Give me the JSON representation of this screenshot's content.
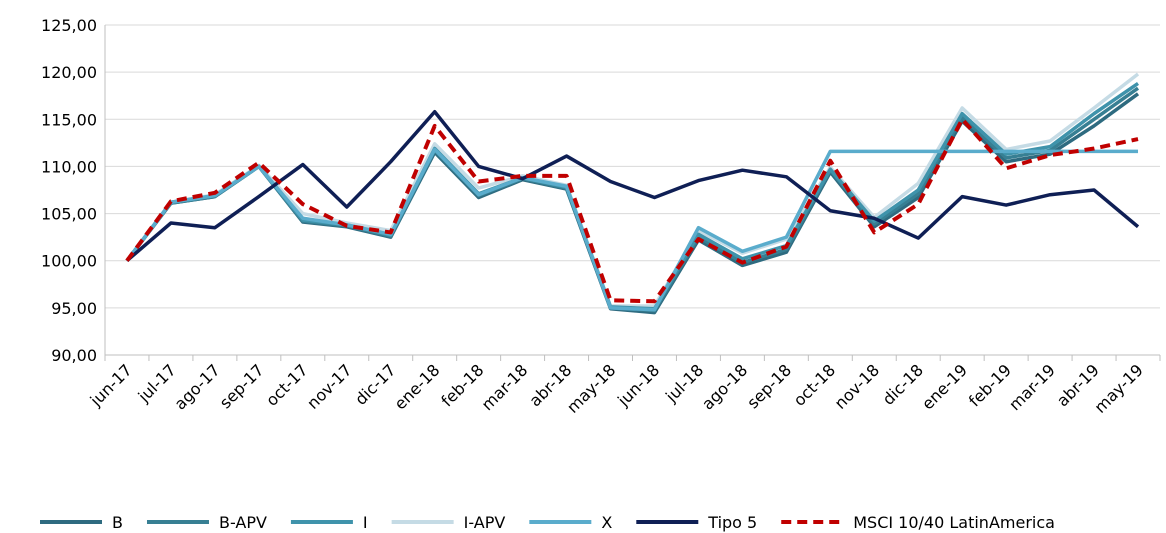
{
  "chart_data": {
    "type": "line",
    "categories": [
      "jun-17",
      "jul-17",
      "ago-17",
      "sep-17",
      "oct-17",
      "nov-17",
      "dic-17",
      "ene-18",
      "feb-18",
      "mar-18",
      "abr-18",
      "may-18",
      "jun-18",
      "jul-18",
      "ago-18",
      "sep-18",
      "oct-18",
      "nov-18",
      "dic-18",
      "ene-19",
      "feb-19",
      "mar-19",
      "abr-19",
      "may-19"
    ],
    "ylim": [
      90,
      125
    ],
    "yticks": [
      {
        "value": 90,
        "label": "90,00"
      },
      {
        "value": 95,
        "label": "95,00"
      },
      {
        "value": 100,
        "label": "100,00"
      },
      {
        "value": 105,
        "label": "105,00"
      },
      {
        "value": 110,
        "label": "110,00"
      },
      {
        "value": 115,
        "label": "115,00"
      },
      {
        "value": 120,
        "label": "120,00"
      },
      {
        "value": 125,
        "label": "125,00"
      }
    ],
    "grid": true,
    "legend": "bottom",
    "series": [
      {
        "name": "B",
        "color": "#2e6b80",
        "dash": false,
        "values": [
          100,
          106.1,
          106.8,
          110,
          104.1,
          103.6,
          102.5,
          111.5,
          106.7,
          108.6,
          107.6,
          94.9,
          94.5,
          102.2,
          99.5,
          100.9,
          109.4,
          103.6,
          106.7,
          114.8,
          110.5,
          111.3,
          114.3,
          117.7
        ]
      },
      {
        "name": "B-APV",
        "color": "#377f93",
        "dash": false,
        "values": [
          100,
          106.1,
          106.8,
          110,
          104.2,
          103.7,
          102.6,
          111.7,
          106.9,
          108.7,
          107.7,
          95,
          94.7,
          102.5,
          99.8,
          101.2,
          109.6,
          103.9,
          107.1,
          115.2,
          110.9,
          111.7,
          115,
          118.3
        ]
      },
      {
        "name": "I",
        "color": "#3f93ab",
        "dash": false,
        "values": [
          100,
          106.2,
          106.9,
          110,
          104.3,
          103.8,
          102.7,
          111.9,
          107.1,
          108.8,
          107.8,
          95.1,
          94.9,
          102.8,
          100.2,
          101.6,
          109.7,
          104.2,
          107.5,
          115.6,
          111.3,
          112.1,
          115.6,
          118.8
        ]
      },
      {
        "name": "I-APV",
        "color": "#c5dbe5",
        "dash": false,
        "values": [
          100,
          106.2,
          107,
          110.1,
          105,
          104,
          103.2,
          112.4,
          107.7,
          109,
          108,
          95.2,
          95.2,
          103.2,
          100.8,
          102.3,
          109.9,
          104.6,
          108.2,
          116.2,
          111.8,
          112.7,
          116.2,
          119.8
        ]
      },
      {
        "name": "X",
        "color": "#5aaccc",
        "dash": false,
        "values": [
          100,
          106.2,
          106.9,
          110,
          104.5,
          103.8,
          102.8,
          111.8,
          107,
          108.8,
          107.9,
          95,
          94.8,
          103.5,
          101,
          102.5,
          111.6,
          111.6,
          111.6,
          111.6,
          111.6,
          111.6,
          111.6,
          111.6
        ]
      },
      {
        "name": "Tipo 5",
        "color": "#0f1f55",
        "dash": false,
        "values": [
          100,
          104,
          103.5,
          106.8,
          110.2,
          105.7,
          110.5,
          115.8,
          110,
          108.7,
          111.1,
          108.4,
          106.7,
          108.5,
          109.6,
          108.9,
          105.3,
          104.5,
          102.4,
          106.8,
          105.9,
          107,
          107.5,
          103.6
        ]
      },
      {
        "name": "MSCI 10/40 LatinAmerica",
        "color": "#c00000",
        "dash": true,
        "values": [
          100,
          106.3,
          107.2,
          110.4,
          106,
          103.7,
          103,
          114.3,
          108.4,
          109,
          109,
          95.8,
          95.7,
          102.3,
          99.8,
          101.5,
          110.6,
          103,
          106,
          115,
          109.8,
          111.2,
          111.9,
          112.9
        ]
      }
    ]
  }
}
